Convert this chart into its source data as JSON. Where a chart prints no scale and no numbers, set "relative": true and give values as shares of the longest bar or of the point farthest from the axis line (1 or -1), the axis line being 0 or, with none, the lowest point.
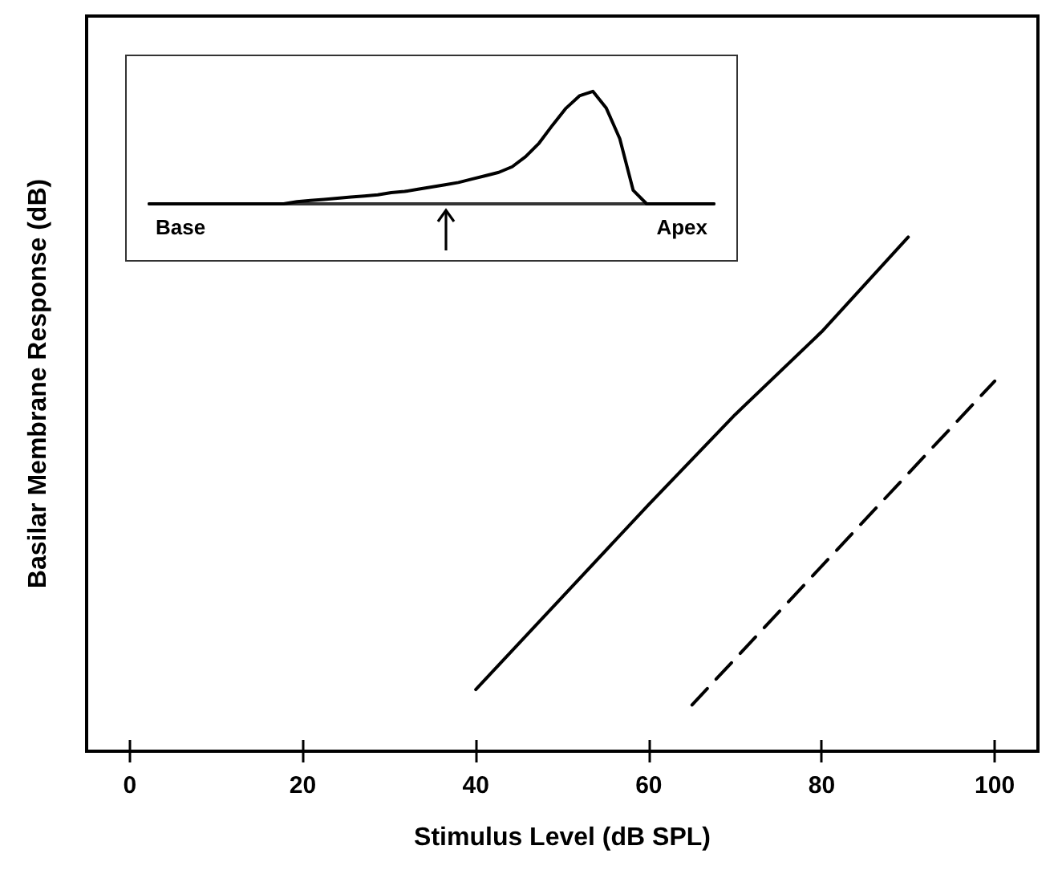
{
  "chart_data": [
    {
      "type": "line",
      "xlabel": "Stimulus Level (dB SPL)",
      "ylabel": "Basilar Membrane Response (dB)",
      "xlim": [
        -5,
        105
      ],
      "xticks": [
        0,
        20,
        40,
        60,
        80,
        100
      ],
      "relative": true,
      "marker": "none",
      "series": [
        {
          "color": "#000000",
          "line_style": "solid",
          "x": [
            40,
            50,
            60,
            70,
            80,
            90
          ],
          "values": [
            0.12,
            0.3,
            0.48,
            0.655,
            0.816,
            1
          ]
        },
        {
          "color": "#000000",
          "line_style": "dashed",
          "x": [
            65,
            100
          ],
          "values": [
            0.09,
            0.72
          ]
        }
      ]
    },
    {
      "type": "line",
      "relative": true,
      "marker": "none",
      "annotations": [
        "Base",
        "Apex"
      ],
      "categories": [
        null,
        null,
        null,
        null,
        null,
        null,
        null,
        null,
        null,
        null,
        null,
        null,
        null,
        null,
        null,
        null,
        null,
        null,
        null,
        null,
        null,
        null,
        null,
        null,
        null,
        null,
        null,
        null,
        null,
        null,
        null,
        null,
        null,
        null,
        null,
        null,
        null,
        null,
        null,
        null,
        null,
        null,
        null
      ],
      "series": [
        {
          "color": "#000000",
          "line_style": "solid",
          "values": [
            0,
            0,
            0,
            0,
            0,
            0,
            0,
            0,
            0,
            0,
            0,
            0.02,
            0.03,
            0.04,
            0.05,
            0.06,
            0.07,
            0.08,
            0.1,
            0.11,
            0.13,
            0.15,
            0.17,
            0.19,
            0.22,
            0.25,
            0.28,
            0.33,
            0.42,
            0.54,
            0.7,
            0.85,
            0.96,
            1,
            0.85,
            0.58,
            0.12,
            0,
            0,
            0,
            0,
            0,
            0
          ]
        }
      ]
    }
  ]
}
